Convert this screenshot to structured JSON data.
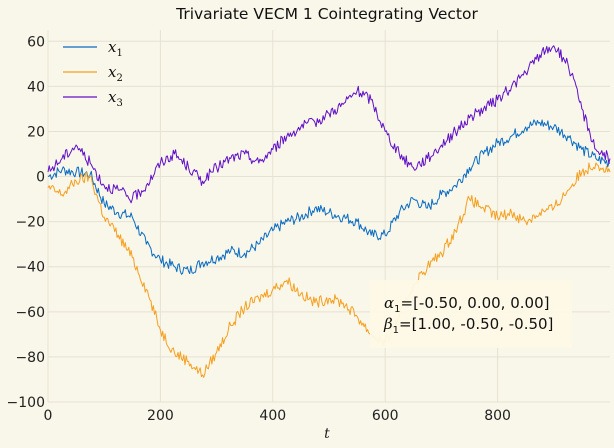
{
  "chart_data": {
    "type": "line",
    "title": "Trivariate VECM 1 Cointegrating Vector",
    "xlabel": "t",
    "ylabel": "",
    "xlim": [
      0,
      1000
    ],
    "ylim": [
      -100,
      65
    ],
    "x_ticks": [
      0,
      200,
      400,
      600,
      800
    ],
    "y_ticks": [
      -100,
      -80,
      -60,
      -40,
      -20,
      0,
      20,
      40,
      60
    ],
    "x_tick_labels": [
      "0",
      "200",
      "400",
      "600",
      "800"
    ],
    "y_tick_labels": [
      "−100",
      "−80",
      "−60",
      "−40",
      "−20",
      "0",
      "20",
      "40",
      "60"
    ],
    "grid": true,
    "legend_position": "top-left",
    "series": [
      {
        "name": "x",
        "subscript": "1",
        "color": "#0a6cc2",
        "points": [
          [
            0,
            0
          ],
          [
            25,
            3
          ],
          [
            50,
            2
          ],
          [
            75,
            1
          ],
          [
            100,
            -12
          ],
          [
            125,
            -16
          ],
          [
            150,
            -18
          ],
          [
            175,
            -30
          ],
          [
            200,
            -37
          ],
          [
            225,
            -40
          ],
          [
            250,
            -42
          ],
          [
            275,
            -38
          ],
          [
            300,
            -36
          ],
          [
            325,
            -33
          ],
          [
            350,
            -34
          ],
          [
            375,
            -30
          ],
          [
            400,
            -24
          ],
          [
            425,
            -20
          ],
          [
            450,
            -18
          ],
          [
            475,
            -14
          ],
          [
            500,
            -16
          ],
          [
            525,
            -18
          ],
          [
            550,
            -20
          ],
          [
            575,
            -26
          ],
          [
            600,
            -26
          ],
          [
            625,
            -16
          ],
          [
            650,
            -10
          ],
          [
            675,
            -14
          ],
          [
            700,
            -8
          ],
          [
            725,
            -4
          ],
          [
            750,
            4
          ],
          [
            775,
            10
          ],
          [
            800,
            15
          ],
          [
            825,
            18
          ],
          [
            850,
            22
          ],
          [
            875,
            24
          ],
          [
            900,
            22
          ],
          [
            925,
            18
          ],
          [
            950,
            12
          ],
          [
            975,
            8
          ],
          [
            1000,
            6
          ]
        ]
      },
      {
        "name": "x",
        "subscript": "2",
        "color": "#f5a020",
        "points": [
          [
            0,
            -5
          ],
          [
            25,
            -8
          ],
          [
            50,
            -2
          ],
          [
            75,
            0
          ],
          [
            100,
            -18
          ],
          [
            125,
            -26
          ],
          [
            150,
            -36
          ],
          [
            175,
            -50
          ],
          [
            200,
            -68
          ],
          [
            225,
            -78
          ],
          [
            250,
            -82
          ],
          [
            275,
            -88
          ],
          [
            300,
            -78
          ],
          [
            325,
            -66
          ],
          [
            350,
            -58
          ],
          [
            375,
            -54
          ],
          [
            400,
            -50
          ],
          [
            425,
            -46
          ],
          [
            450,
            -52
          ],
          [
            475,
            -56
          ],
          [
            500,
            -54
          ],
          [
            525,
            -56
          ],
          [
            550,
            -62
          ],
          [
            575,
            -70
          ],
          [
            600,
            -74
          ],
          [
            625,
            -62
          ],
          [
            650,
            -48
          ],
          [
            675,
            -40
          ],
          [
            700,
            -34
          ],
          [
            725,
            -24
          ],
          [
            750,
            -10
          ],
          [
            775,
            -14
          ],
          [
            800,
            -18
          ],
          [
            825,
            -16
          ],
          [
            850,
            -20
          ],
          [
            875,
            -16
          ],
          [
            900,
            -14
          ],
          [
            925,
            -6
          ],
          [
            950,
            2
          ],
          [
            975,
            6
          ],
          [
            1000,
            2
          ]
        ]
      },
      {
        "name": "x",
        "subscript": "3",
        "color": "#6010c8",
        "points": [
          [
            0,
            2
          ],
          [
            25,
            8
          ],
          [
            50,
            14
          ],
          [
            75,
            6
          ],
          [
            100,
            -4
          ],
          [
            125,
            -6
          ],
          [
            150,
            -10
          ],
          [
            175,
            -4
          ],
          [
            200,
            6
          ],
          [
            225,
            10
          ],
          [
            250,
            4
          ],
          [
            275,
            -2
          ],
          [
            300,
            4
          ],
          [
            325,
            8
          ],
          [
            350,
            10
          ],
          [
            375,
            6
          ],
          [
            400,
            12
          ],
          [
            425,
            18
          ],
          [
            450,
            22
          ],
          [
            475,
            24
          ],
          [
            500,
            28
          ],
          [
            525,
            32
          ],
          [
            550,
            38
          ],
          [
            575,
            34
          ],
          [
            600,
            20
          ],
          [
            625,
            10
          ],
          [
            650,
            4
          ],
          [
            675,
            8
          ],
          [
            700,
            14
          ],
          [
            725,
            20
          ],
          [
            750,
            26
          ],
          [
            775,
            30
          ],
          [
            800,
            34
          ],
          [
            825,
            40
          ],
          [
            850,
            46
          ],
          [
            875,
            54
          ],
          [
            900,
            58
          ],
          [
            925,
            50
          ],
          [
            950,
            30
          ],
          [
            975,
            12
          ],
          [
            1000,
            8
          ]
        ]
      }
    ],
    "annotation": {
      "lines": [
        {
          "symbol": "α",
          "subscript": "1",
          "text": "=[-0.50, 0.00, 0.00]"
        },
        {
          "symbol": "β",
          "subscript": "1",
          "text": "=[1.00, -0.50, -0.50]"
        }
      ],
      "position": "lower-right"
    }
  }
}
